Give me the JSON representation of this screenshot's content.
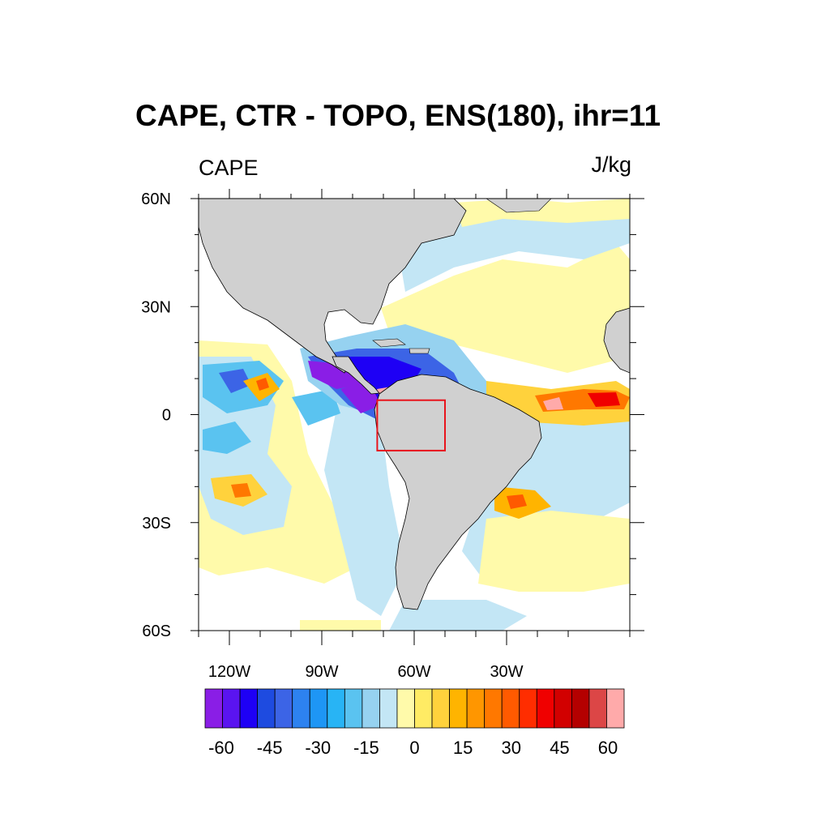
{
  "title": "CAPE, CTR - TOPO, ENS(180), ihr=11",
  "left_label": "CAPE",
  "right_label": "J/kg",
  "map": {
    "lat_ticks": [
      {
        "lat": 60,
        "label": "60N"
      },
      {
        "lat": 30,
        "label": "30N"
      },
      {
        "lat": 0,
        "label": "0"
      },
      {
        "lat": -30,
        "label": "30S"
      },
      {
        "lat": -60,
        "label": "60S"
      }
    ],
    "lon_ticks": [
      {
        "lon": -120,
        "label": "120W"
      },
      {
        "lon": -90,
        "label": "90W"
      },
      {
        "lon": -60,
        "label": "60W"
      },
      {
        "lon": -30,
        "label": "30W"
      }
    ],
    "lon_range": [
      -130,
      10
    ],
    "lat_range": [
      -60,
      60
    ],
    "box_region": {
      "lon": [
        -72,
        -50
      ],
      "lat": [
        -10,
        4
      ]
    },
    "box_color": "#e8141c",
    "land_color": "#d0d0d0"
  },
  "colorbar": {
    "labels": [
      "-60",
      "-45",
      "-30",
      "-15",
      "0",
      "15",
      "30",
      "45",
      "60"
    ],
    "colors": [
      "#8a1ee6",
      "#5a14f0",
      "#1e00f5",
      "#1e4be0",
      "#3c64e6",
      "#2d82f0",
      "#1e96f5",
      "#28b4f5",
      "#5ac3f0",
      "#96d2f0",
      "#c3e6f5",
      "#fffaaa",
      "#ffeb64",
      "#ffd23c",
      "#ffb400",
      "#ff9600",
      "#ff7800",
      "#ff5a00",
      "#ff2d00",
      "#f00000",
      "#d20000",
      "#b40000",
      "#dc4646",
      "#ffaaaa"
    ]
  }
}
